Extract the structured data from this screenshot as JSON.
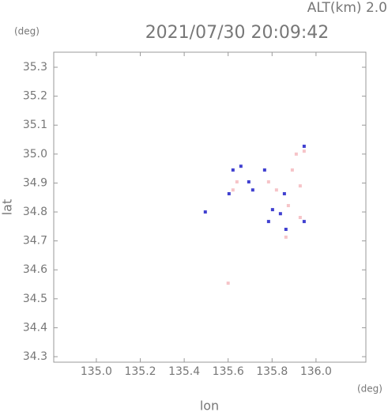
{
  "chart_data": {
    "type": "scatter",
    "title": "2021/07/30 20:09:42",
    "annotation": "ALT(km) 2.0",
    "y_unit": "(deg)",
    "x_unit": "(deg)",
    "xlabel": "lon",
    "ylabel": "lat",
    "xlim": [
      134.806,
      136.227
    ],
    "ylim": [
      34.281,
      35.352
    ],
    "xticks": [
      {
        "value": 135,
        "label": "135.0"
      },
      135.2,
      135.4,
      135.6,
      135.8,
      {
        "value": 136,
        "label": "136.0"
      }
    ],
    "yticks": [
      34.3,
      34.4,
      34.5,
      34.6,
      34.7,
      34.8,
      34.9,
      {
        "value": 35,
        "label": "35.0"
      },
      35.1,
      35.2,
      35.3
    ],
    "series": [
      {
        "color": "#f6c4c8",
        "x": [
          135.91,
          135.946,
          135.892,
          135.928,
          135.82,
          135.784,
          135.874,
          135.928,
          135.863,
          135.64,
          135.622,
          135.6
        ],
        "values": [
          35.0,
          35.01,
          34.945,
          34.89,
          34.876,
          34.904,
          34.822,
          34.781,
          34.713,
          34.904,
          34.876,
          34.554
        ]
      },
      {
        "color": "#4040d0",
        "x": [
          135.622,
          135.658,
          135.604,
          135.694,
          135.496,
          135.712,
          135.802,
          135.838,
          135.784,
          135.863,
          135.946,
          135.856,
          135.766,
          135.946
        ],
        "values": [
          34.945,
          34.958,
          34.863,
          34.904,
          34.8,
          34.876,
          34.808,
          34.794,
          34.767,
          34.74,
          34.767,
          34.863,
          34.945,
          35.027
        ]
      }
    ]
  }
}
